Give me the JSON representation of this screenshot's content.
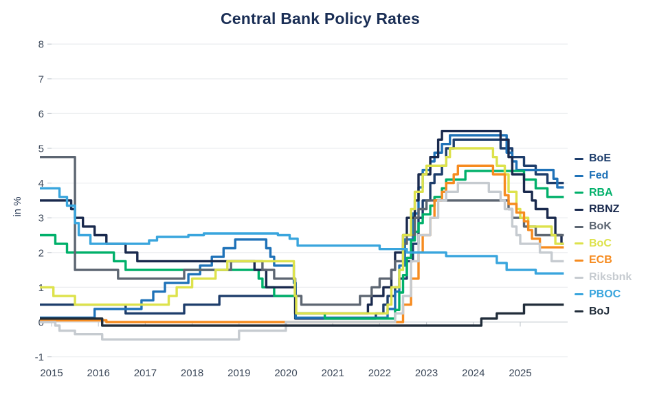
{
  "title": "Central Bank Policy Rates",
  "colors": {
    "title_text": "#1a2e55",
    "axis_text": "#3e4a5b",
    "grid_line": "#eceef0",
    "zero_line": "#d9dde1",
    "tick_mark": "#c5cad0"
  },
  "chart_data": {
    "type": "line",
    "step": true,
    "title": "Central Bank Policy Rates",
    "ylabel": "in %",
    "xlabel": "",
    "grid": "horizontal",
    "legend_position": "right",
    "x_ticks": [
      2015,
      2016,
      2017,
      2018,
      2019,
      2020,
      2021,
      2022,
      2023,
      2024,
      2025
    ],
    "y_ticks": [
      8,
      7,
      6,
      5,
      4,
      3,
      2,
      1,
      0,
      -1
    ],
    "ylim": [
      -1,
      8
    ],
    "xlim": [
      2014.75,
      2025.93
    ],
    "series": [
      {
        "name": "BoE",
        "color": "#1d3d6b",
        "points": [
          [
            2014.75,
            0.5
          ],
          [
            2016.58,
            0.25
          ],
          [
            2017.83,
            0.5
          ],
          [
            2018.58,
            0.75
          ],
          [
            2020.2,
            0.1
          ],
          [
            2021.92,
            0.25
          ],
          [
            2022.08,
            0.5
          ],
          [
            2022.17,
            0.75
          ],
          [
            2022.33,
            1.0
          ],
          [
            2022.42,
            1.25
          ],
          [
            2022.58,
            1.75
          ],
          [
            2022.71,
            2.25
          ],
          [
            2022.83,
            3.0
          ],
          [
            2022.92,
            3.5
          ],
          [
            2023.08,
            4.0
          ],
          [
            2023.17,
            4.25
          ],
          [
            2023.33,
            4.5
          ],
          [
            2023.42,
            5.0
          ],
          [
            2023.58,
            5.25
          ],
          [
            2024.58,
            5.0
          ],
          [
            2024.83,
            4.75
          ],
          [
            2025.08,
            4.5
          ],
          [
            2025.33,
            4.25
          ],
          [
            2025.58,
            4.0
          ]
        ]
      },
      {
        "name": "Fed",
        "color": "#1f72b8",
        "points": [
          [
            2014.75,
            0.125
          ],
          [
            2015.92,
            0.375
          ],
          [
            2016.92,
            0.625
          ],
          [
            2017.17,
            0.875
          ],
          [
            2017.42,
            1.125
          ],
          [
            2017.92,
            1.375
          ],
          [
            2018.17,
            1.625
          ],
          [
            2018.42,
            1.875
          ],
          [
            2018.67,
            2.125
          ],
          [
            2018.92,
            2.375
          ],
          [
            2019.58,
            2.125
          ],
          [
            2019.67,
            1.875
          ],
          [
            2019.75,
            1.625
          ],
          [
            2020.17,
            1.125
          ],
          [
            2020.21,
            0.125
          ],
          [
            2022.17,
            0.375
          ],
          [
            2022.33,
            0.875
          ],
          [
            2022.42,
            1.625
          ],
          [
            2022.54,
            2.375
          ],
          [
            2022.71,
            3.125
          ],
          [
            2022.83,
            3.875
          ],
          [
            2022.92,
            4.375
          ],
          [
            2023.08,
            4.625
          ],
          [
            2023.17,
            4.875
          ],
          [
            2023.33,
            5.125
          ],
          [
            2023.5,
            5.375
          ],
          [
            2024.71,
            4.875
          ],
          [
            2024.83,
            4.625
          ],
          [
            2024.92,
            4.375
          ],
          [
            2025.71,
            4.125
          ],
          [
            2025.79,
            3.875
          ]
        ]
      },
      {
        "name": "RBA",
        "color": "#00b06a",
        "points": [
          [
            2014.75,
            2.5
          ],
          [
            2015.08,
            2.25
          ],
          [
            2015.33,
            2.0
          ],
          [
            2016.33,
            1.75
          ],
          [
            2016.58,
            1.5
          ],
          [
            2019.42,
            1.25
          ],
          [
            2019.5,
            1.0
          ],
          [
            2019.75,
            0.75
          ],
          [
            2020.2,
            0.25
          ],
          [
            2020.83,
            0.1
          ],
          [
            2022.33,
            0.35
          ],
          [
            2022.42,
            0.85
          ],
          [
            2022.5,
            1.35
          ],
          [
            2022.58,
            1.85
          ],
          [
            2022.67,
            2.35
          ],
          [
            2022.75,
            2.6
          ],
          [
            2022.83,
            2.85
          ],
          [
            2022.92,
            3.1
          ],
          [
            2023.08,
            3.35
          ],
          [
            2023.17,
            3.6
          ],
          [
            2023.33,
            3.85
          ],
          [
            2023.42,
            4.1
          ],
          [
            2023.83,
            4.35
          ],
          [
            2025.08,
            4.1
          ],
          [
            2025.33,
            3.85
          ],
          [
            2025.58,
            3.6
          ]
        ]
      },
      {
        "name": "RBNZ",
        "color": "#19294d",
        "points": [
          [
            2014.75,
            3.5
          ],
          [
            2015.42,
            3.25
          ],
          [
            2015.5,
            3.0
          ],
          [
            2015.67,
            2.75
          ],
          [
            2015.92,
            2.5
          ],
          [
            2016.17,
            2.25
          ],
          [
            2016.58,
            2.0
          ],
          [
            2016.83,
            1.75
          ],
          [
            2019.33,
            1.5
          ],
          [
            2019.58,
            1.0
          ],
          [
            2020.2,
            0.25
          ],
          [
            2021.75,
            0.5
          ],
          [
            2021.83,
            0.75
          ],
          [
            2022.08,
            1.0
          ],
          [
            2022.25,
            1.5
          ],
          [
            2022.33,
            2.0
          ],
          [
            2022.5,
            2.5
          ],
          [
            2022.58,
            3.0
          ],
          [
            2022.75,
            3.5
          ],
          [
            2022.83,
            4.25
          ],
          [
            2023.08,
            4.75
          ],
          [
            2023.25,
            5.25
          ],
          [
            2023.33,
            5.5
          ],
          [
            2024.58,
            5.25
          ],
          [
            2024.75,
            4.75
          ],
          [
            2024.83,
            4.25
          ],
          [
            2025.08,
            3.75
          ],
          [
            2025.25,
            3.5
          ],
          [
            2025.33,
            3.25
          ],
          [
            2025.58,
            3.0
          ],
          [
            2025.75,
            2.5
          ],
          [
            2025.88,
            2.25
          ]
        ]
      },
      {
        "name": "BoK",
        "color": "#5d6672",
        "points": [
          [
            2014.75,
            4.75
          ],
          [
            2015.5,
            1.5
          ],
          [
            2016.42,
            1.25
          ],
          [
            2017.83,
            1.5
          ],
          [
            2018.83,
            1.75
          ],
          [
            2019.5,
            1.5
          ],
          [
            2019.75,
            1.25
          ],
          [
            2020.2,
            0.75
          ],
          [
            2020.33,
            0.5
          ],
          [
            2021.58,
            0.75
          ],
          [
            2021.83,
            1.0
          ],
          [
            2022.0,
            1.25
          ],
          [
            2022.25,
            1.5
          ],
          [
            2022.33,
            1.75
          ],
          [
            2022.5,
            2.25
          ],
          [
            2022.58,
            2.5
          ],
          [
            2022.75,
            3.0
          ],
          [
            2022.83,
            3.25
          ],
          [
            2023.0,
            3.5
          ],
          [
            2024.75,
            3.25
          ],
          [
            2024.83,
            3.0
          ],
          [
            2025.08,
            2.75
          ],
          [
            2025.33,
            2.5
          ]
        ]
      },
      {
        "name": "BoC",
        "color": "#dde24c",
        "points": [
          [
            2014.75,
            1.0
          ],
          [
            2015.04,
            0.75
          ],
          [
            2015.5,
            0.5
          ],
          [
            2017.5,
            0.75
          ],
          [
            2017.67,
            1.0
          ],
          [
            2018.0,
            1.25
          ],
          [
            2018.5,
            1.5
          ],
          [
            2018.75,
            1.75
          ],
          [
            2020.17,
            1.25
          ],
          [
            2020.19,
            0.75
          ],
          [
            2020.22,
            0.25
          ],
          [
            2022.17,
            0.5
          ],
          [
            2022.25,
            1.0
          ],
          [
            2022.42,
            1.5
          ],
          [
            2022.5,
            2.5
          ],
          [
            2022.67,
            3.25
          ],
          [
            2022.75,
            3.75
          ],
          [
            2022.92,
            4.25
          ],
          [
            2023.0,
            4.5
          ],
          [
            2023.42,
            4.75
          ],
          [
            2023.5,
            5.0
          ],
          [
            2024.42,
            4.75
          ],
          [
            2024.5,
            4.5
          ],
          [
            2024.67,
            4.25
          ],
          [
            2024.75,
            3.75
          ],
          [
            2024.92,
            3.25
          ],
          [
            2025.0,
            3.0
          ],
          [
            2025.17,
            2.75
          ],
          [
            2025.67,
            2.5
          ],
          [
            2025.75,
            2.25
          ]
        ]
      },
      {
        "name": "ECB",
        "color": "#f68b1f",
        "points": [
          [
            2014.75,
            0.05
          ],
          [
            2016.17,
            0.0
          ],
          [
            2022.5,
            0.5
          ],
          [
            2022.67,
            1.25
          ],
          [
            2022.83,
            2.0
          ],
          [
            2022.92,
            2.5
          ],
          [
            2023.08,
            3.0
          ],
          [
            2023.17,
            3.5
          ],
          [
            2023.33,
            3.75
          ],
          [
            2023.42,
            4.0
          ],
          [
            2023.58,
            4.25
          ],
          [
            2023.67,
            4.5
          ],
          [
            2024.42,
            4.25
          ],
          [
            2024.67,
            3.65
          ],
          [
            2024.75,
            3.4
          ],
          [
            2024.92,
            3.15
          ],
          [
            2025.08,
            2.9
          ],
          [
            2025.17,
            2.65
          ],
          [
            2025.25,
            2.4
          ],
          [
            2025.42,
            2.15
          ]
        ]
      },
      {
        "name": "Riksbnk",
        "color": "#c6cbd0",
        "points": [
          [
            2014.75,
            0.0
          ],
          [
            2015.08,
            -0.1
          ],
          [
            2015.17,
            -0.25
          ],
          [
            2015.5,
            -0.35
          ],
          [
            2016.08,
            -0.5
          ],
          [
            2019.0,
            -0.25
          ],
          [
            2020.0,
            0.0
          ],
          [
            2022.33,
            0.25
          ],
          [
            2022.5,
            0.75
          ],
          [
            2022.67,
            1.75
          ],
          [
            2022.83,
            2.5
          ],
          [
            2023.08,
            3.0
          ],
          [
            2023.25,
            3.5
          ],
          [
            2023.42,
            3.75
          ],
          [
            2023.67,
            4.0
          ],
          [
            2024.33,
            3.75
          ],
          [
            2024.58,
            3.5
          ],
          [
            2024.67,
            3.25
          ],
          [
            2024.83,
            2.75
          ],
          [
            2024.92,
            2.5
          ],
          [
            2025.0,
            2.25
          ],
          [
            2025.42,
            2.0
          ],
          [
            2025.67,
            1.75
          ]
        ]
      },
      {
        "name": "PBOC",
        "color": "#39a5dd",
        "points": [
          [
            2014.75,
            3.85
          ],
          [
            2015.17,
            3.6
          ],
          [
            2015.33,
            3.35
          ],
          [
            2015.5,
            2.85
          ],
          [
            2015.58,
            2.5
          ],
          [
            2015.83,
            2.25
          ],
          [
            2017.08,
            2.35
          ],
          [
            2017.25,
            2.45
          ],
          [
            2017.92,
            2.5
          ],
          [
            2018.25,
            2.55
          ],
          [
            2019.83,
            2.5
          ],
          [
            2020.08,
            2.4
          ],
          [
            2020.25,
            2.2
          ],
          [
            2022.0,
            2.1
          ],
          [
            2022.58,
            2.0
          ],
          [
            2023.42,
            1.9
          ],
          [
            2024.5,
            1.7
          ],
          [
            2024.71,
            1.5
          ],
          [
            2025.33,
            1.4
          ]
        ]
      },
      {
        "name": "BoJ",
        "color": "#212d3a",
        "points": [
          [
            2014.75,
            0.1
          ],
          [
            2016.08,
            -0.1
          ],
          [
            2024.17,
            0.1
          ],
          [
            2024.5,
            0.25
          ],
          [
            2025.08,
            0.5
          ]
        ]
      }
    ]
  }
}
